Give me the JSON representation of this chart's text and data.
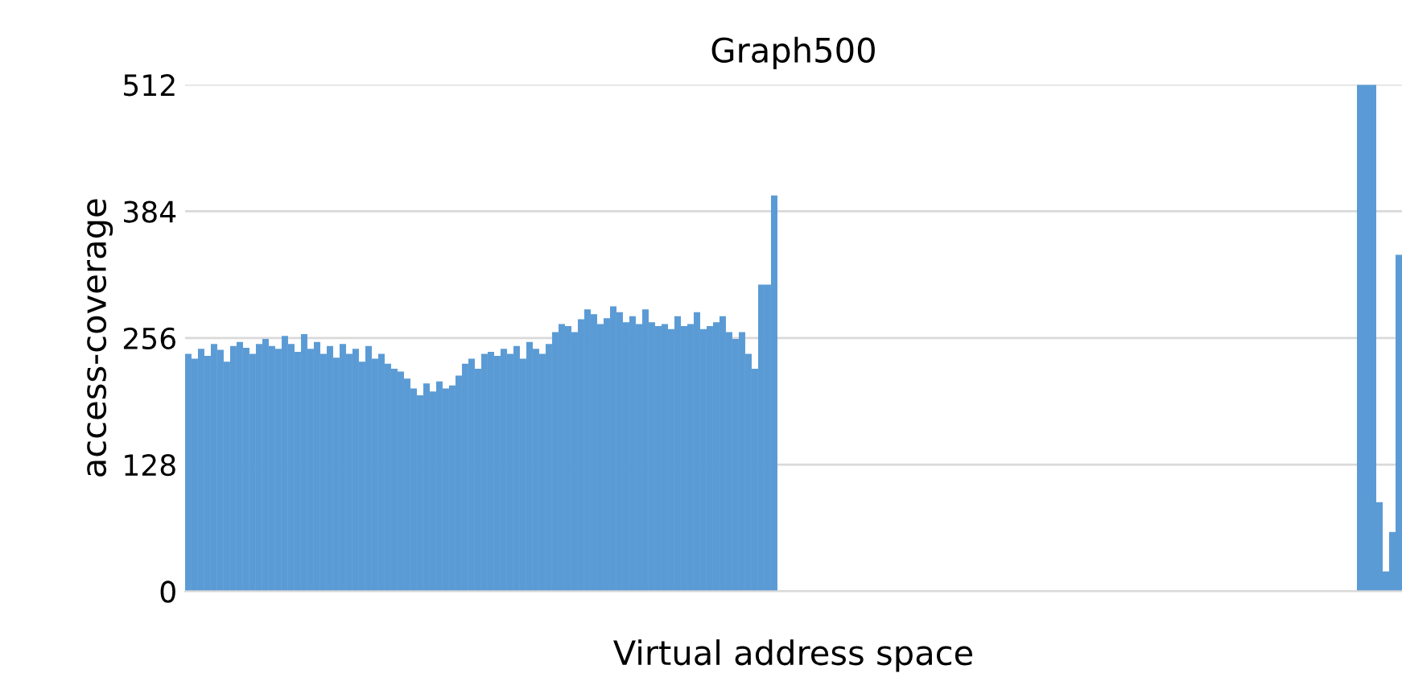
{
  "chart_data": {
    "type": "bar",
    "title": "Graph500",
    "xlabel": "Virtual address space",
    "ylabel": "access-coverage",
    "color": "#5b9bd5",
    "ylim": [
      0,
      512
    ],
    "yticks": [
      0,
      128,
      256,
      384,
      512
    ],
    "grid": "y",
    "legend": false,
    "categories": [
      null,
      null,
      null,
      null,
      null,
      null,
      null,
      null,
      null,
      null,
      null,
      null,
      null,
      null,
      null,
      null,
      null,
      null,
      null,
      null,
      null,
      null,
      null,
      null,
      null,
      null,
      null,
      null,
      null,
      null,
      null,
      null,
      null,
      null,
      null,
      null,
      null,
      null,
      null,
      null,
      null,
      null,
      null,
      null,
      null,
      null,
      null,
      null,
      null,
      null,
      null,
      null,
      null,
      null,
      null,
      null,
      null,
      null,
      null,
      null,
      null,
      null,
      null,
      null,
      null,
      null,
      null,
      null,
      null,
      null,
      null,
      null,
      null,
      null,
      null,
      null,
      null,
      null,
      null,
      null,
      null,
      null,
      null,
      null,
      null,
      null,
      null,
      null,
      null,
      null,
      null,
      null,
      null,
      null,
      null,
      null,
      null,
      null,
      null,
      null,
      null,
      null,
      null,
      null,
      null,
      null,
      null,
      null,
      null,
      null,
      null,
      null,
      null,
      null,
      null,
      null,
      null,
      null,
      null,
      null,
      null,
      null,
      null,
      null,
      null,
      null,
      null,
      null,
      null,
      null,
      null,
      null,
      null,
      null,
      null,
      null,
      null,
      null,
      null,
      null,
      null,
      null,
      null,
      null,
      null,
      null,
      null,
      null,
      null,
      null,
      null,
      null,
      null,
      null,
      null,
      null,
      null,
      null,
      null,
      null,
      null,
      null,
      null,
      null,
      null,
      null,
      null,
      null,
      null,
      null,
      null,
      null,
      null,
      null,
      null,
      null,
      null,
      null,
      null,
      null,
      null,
      null,
      null,
      null,
      null,
      null,
      null,
      null,
      null
    ],
    "values": [
      240,
      235,
      245,
      238,
      250,
      244,
      232,
      248,
      252,
      246,
      240,
      250,
      255,
      248,
      245,
      258,
      250,
      242,
      260,
      245,
      252,
      240,
      248,
      236,
      250,
      240,
      245,
      232,
      248,
      235,
      240,
      230,
      225,
      222,
      215,
      205,
      198,
      210,
      202,
      212,
      205,
      208,
      218,
      230,
      235,
      225,
      240,
      242,
      238,
      245,
      240,
      248,
      235,
      252,
      245,
      240,
      250,
      262,
      270,
      268,
      262,
      275,
      285,
      280,
      270,
      276,
      288,
      282,
      272,
      278,
      270,
      285,
      272,
      268,
      270,
      265,
      278,
      268,
      270,
      282,
      265,
      268,
      272,
      278,
      262,
      255,
      262,
      240,
      225,
      310,
      310,
      400,
      0,
      0,
      0,
      0,
      0,
      0,
      0,
      0,
      0,
      0,
      0,
      0,
      0,
      0,
      0,
      0,
      0,
      0,
      0,
      0,
      0,
      0,
      0,
      0,
      0,
      0,
      0,
      0,
      0,
      0,
      0,
      0,
      0,
      0,
      0,
      0,
      0,
      0,
      0,
      0,
      0,
      0,
      0,
      0,
      0,
      0,
      0,
      0,
      0,
      0,
      0,
      0,
      0,
      0,
      0,
      0,
      0,
      0,
      0,
      0,
      0,
      0,
      0,
      0,
      0,
      0,
      0,
      0,
      0,
      0,
      0,
      0,
      0,
      0,
      0,
      0,
      0,
      0,
      0,
      0,
      0,
      0,
      0,
      0,
      0,
      0,
      0,
      0,
      0,
      0,
      512,
      512,
      512,
      90,
      20,
      60,
      340
    ]
  }
}
